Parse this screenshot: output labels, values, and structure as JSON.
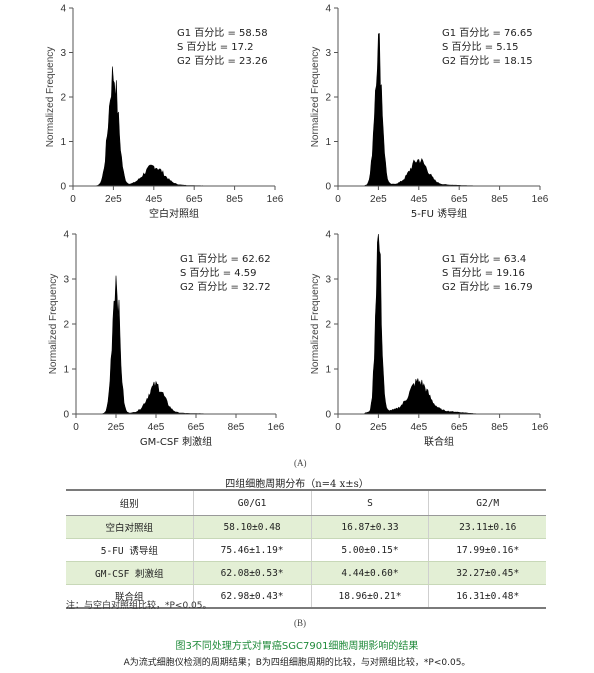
{
  "chart_data": [
    {
      "type": "area",
      "ylabel": "Normalized Frequency",
      "xlabel": "空白对照组",
      "ylim": [
        0,
        4
      ],
      "xlim": [
        0,
        1000000
      ],
      "x_ticks": [
        "0",
        "2e5",
        "4e5",
        "6e5",
        "8e5",
        "1e6"
      ],
      "y_ticks": [
        "0",
        "1",
        "2",
        "3",
        "4"
      ],
      "stats": [
        "G1 百分比 = 58.58",
        "S 百分比 = 17.2",
        "G2 百分比 = 23.26"
      ],
      "peaks": [
        {
          "x": 200000,
          "height": 2.55,
          "width": 24000
        },
        {
          "x": 400000,
          "height": 0.42,
          "width": 48000
        }
      ],
      "baseline": 0.03
    },
    {
      "type": "area",
      "ylabel": "Normalized Frequency",
      "xlabel": "5-FU 诱导组",
      "ylim": [
        0,
        4
      ],
      "xlim": [
        0,
        1000000
      ],
      "x_ticks": [
        "0",
        "2e5",
        "4e5",
        "6e5",
        "8e5",
        "1e6"
      ],
      "y_ticks": [
        "0",
        "1",
        "2",
        "3",
        "4"
      ],
      "stats": [
        "G1 百分比 = 76.65",
        "S 百分比 = 5.15",
        "G2 百分比 = 18.15"
      ],
      "peaks": [
        {
          "x": 200000,
          "height": 3.22,
          "width": 18000
        },
        {
          "x": 400000,
          "height": 0.55,
          "width": 42000
        }
      ],
      "baseline": 0.05
    },
    {
      "type": "area",
      "ylabel": "Normalized Frequency",
      "xlabel": "GM-CSF 刺激组",
      "ylim": [
        0,
        4
      ],
      "xlim": [
        0,
        1000000
      ],
      "x_ticks": [
        "0",
        "2e5",
        "4e5",
        "6e5",
        "8e5",
        "1e6"
      ],
      "y_ticks": [
        "0",
        "1",
        "2",
        "3",
        "4"
      ],
      "stats": [
        "G1 百分比 = 62.62",
        "S 百分比 = 4.59",
        "G2 百分比 = 32.72"
      ],
      "peaks": [
        {
          "x": 200000,
          "height": 3.12,
          "width": 18000
        },
        {
          "x": 400000,
          "height": 0.62,
          "width": 40000
        }
      ],
      "baseline": 0.03
    },
    {
      "type": "area",
      "ylabel": "Normalized Frequency",
      "xlabel": "联合组",
      "ylim": [
        0,
        4
      ],
      "xlim": [
        0,
        1000000
      ],
      "x_ticks": [
        "0",
        "2e5",
        "4e5",
        "6e5",
        "8e5",
        "1e6"
      ],
      "y_ticks": [
        "0",
        "1",
        "2",
        "3",
        "4"
      ],
      "stats": [
        "G1 百分比 = 63.4",
        "S 百分比 = 19.16",
        "G2 百分比 = 16.79"
      ],
      "peaks": [
        {
          "x": 200000,
          "height": 4.0,
          "width": 14000
        },
        {
          "x": 400000,
          "height": 0.62,
          "width": 45000
        }
      ],
      "baseline": 0.12
    },
    {
      "type": "table",
      "title": "四组细胞周期分布（n=4 x±s）",
      "columns": [
        "组别",
        "G0/G1",
        "S",
        "G2/M"
      ],
      "rows": [
        [
          "空白对照组",
          "58.10±0.48",
          "16.87±0.33",
          "23.11±0.16"
        ],
        [
          "5-FU 诱导组",
          "75.46±1.19*",
          "5.00±0.15*",
          "17.99±0.16*"
        ],
        [
          "GM-CSF 刺激组",
          "62.08±0.53*",
          "4.44±0.60*",
          "32.27±0.45*"
        ],
        [
          "联合组",
          "62.98±0.43*",
          "18.96±0.21*",
          "16.31±0.48*"
        ]
      ]
    }
  ],
  "labels": {
    "panel_a": "(A)",
    "panel_b": "(B)",
    "note": "注：与空白对照组比较，*P<0.05。",
    "figure_title": "图3不同处理方式对胃癌SGC7901细胞周期影响的结果",
    "figure_desc": "A为流式细胞仪检测的周期结果；B为四组细胞周期的比较，与对照组比较，*P<0.05。"
  },
  "colors": {
    "histogram": "#000000",
    "table_alt_row": "#e3efd5",
    "figure_title": "#1f8a3a"
  }
}
